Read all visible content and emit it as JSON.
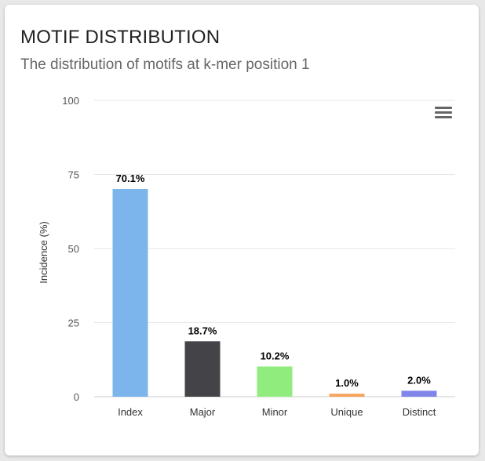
{
  "card": {
    "title": "MOTIF DISTRIBUTION",
    "subtitle": "The distribution of motifs at k-mer position 1"
  },
  "menu": {
    "icon": "hamburger-menu-icon"
  },
  "chart_data": {
    "type": "bar",
    "categories": [
      "Index",
      "Major",
      "Minor",
      "Unique",
      "Distinct"
    ],
    "values": [
      70.1,
      18.7,
      10.2,
      1.0,
      2.0
    ],
    "data_labels": [
      "70.1%",
      "18.7%",
      "10.2%",
      "1.0%",
      "2.0%"
    ],
    "colors": [
      "#7cb5ec",
      "#434348",
      "#90ed7d",
      "#f7a35c",
      "#8085e9"
    ],
    "ylabel": "Incidence (%)",
    "xlabel": "",
    "ylim": [
      0,
      100
    ],
    "yticks": [
      0,
      25,
      50,
      75,
      100
    ],
    "grid": true,
    "legend": "none"
  }
}
